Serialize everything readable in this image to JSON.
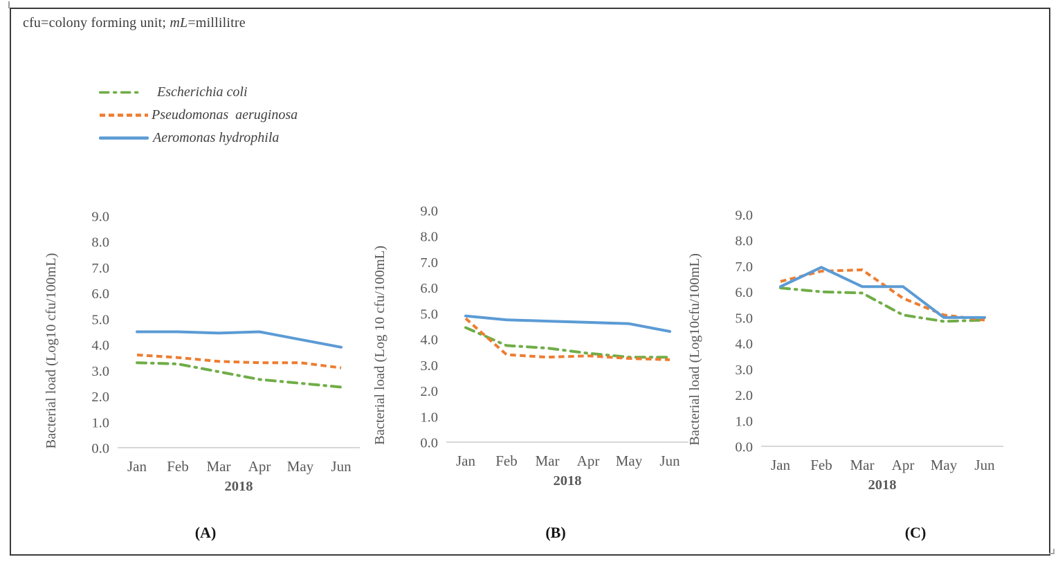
{
  "note": {
    "prefix": "cfu=colony forming unit; ",
    "emphasis": "mL",
    "suffix": "=millilitre"
  },
  "legend": {
    "items": [
      {
        "label": "Escherichia coli",
        "color": "#70AD47",
        "line_style": "dash-dot"
      },
      {
        "label": "Pseudomonas  aeruginosa",
        "color": "#ED7D31",
        "line_style": "dashed"
      },
      {
        "label": "Aeromonas hydrophila",
        "color": "#5B9BD5",
        "line_style": "solid"
      }
    ]
  },
  "colors": {
    "ecoli_green": "#70AD47",
    "pseudomonas_orange": "#ED7D31",
    "aeromonas_blue": "#5B9BD5",
    "axis_gray": "#BFBFBF",
    "tick_text_gray": "#595959"
  },
  "chart_data": [
    {
      "type": "line",
      "panel_label": "(A)",
      "categories": [
        "Jan",
        "Feb",
        "Mar",
        "Apr",
        "May",
        "Jun"
      ],
      "x_group_label": "2018",
      "ylabel": "Bacterial load (Log10 cfu/100mL)",
      "ylim": [
        0,
        9
      ],
      "ytick_labels": [
        "9.0",
        "8.0",
        "7.0",
        "6.0",
        "5.0",
        "4.0",
        "3.0",
        "2.0",
        "1.0",
        "0.0"
      ],
      "grid": false,
      "legend_position": "none",
      "series": [
        {
          "name": "Escherichia coli",
          "color": "#70AD47",
          "style": "dash-dot",
          "values": [
            3.3,
            3.25,
            2.95,
            2.65,
            2.5,
            2.35
          ]
        },
        {
          "name": "Pseudomonas aeruginosa",
          "color": "#ED7D31",
          "style": "dashed",
          "values": [
            3.6,
            3.5,
            3.35,
            3.3,
            3.3,
            3.1
          ]
        },
        {
          "name": "Aeromonas hydrophila",
          "color": "#5B9BD5",
          "style": "solid",
          "values": [
            4.5,
            4.5,
            4.45,
            4.5,
            4.2,
            3.9
          ]
        }
      ]
    },
    {
      "type": "line",
      "panel_label": "(B)",
      "categories": [
        "Jan",
        "Feb",
        "Mar",
        "Apr",
        "May",
        "Jun"
      ],
      "x_group_label": "2018",
      "ylabel": "Bacterial load (Log 10 cfu/100mL)",
      "ylim": [
        0,
        9
      ],
      "ytick_labels": [
        "9.0",
        "8.0",
        "7.0",
        "6.0",
        "5.0",
        "4.0",
        "3.0",
        "2.0",
        "1.0",
        "0.0"
      ],
      "grid": false,
      "legend_position": "none",
      "series": [
        {
          "name": "Escherichia coli",
          "color": "#70AD47",
          "style": "dash-dot",
          "values": [
            4.45,
            3.75,
            3.65,
            3.45,
            3.3,
            3.3
          ]
        },
        {
          "name": "Pseudomonas aeruginosa",
          "color": "#ED7D31",
          "style": "dashed",
          "values": [
            4.8,
            3.4,
            3.3,
            3.35,
            3.25,
            3.2
          ]
        },
        {
          "name": "Aeromonas hydrophila",
          "color": "#5B9BD5",
          "style": "solid",
          "values": [
            4.9,
            4.75,
            4.7,
            4.65,
            4.6,
            4.3
          ]
        }
      ]
    },
    {
      "type": "line",
      "panel_label": "(C)",
      "categories": [
        "Jan",
        "Feb",
        "Mar",
        "Apr",
        "May",
        "Jun"
      ],
      "x_group_label": "2018",
      "ylabel": "Bacterial load (Log10cfu/100mL)",
      "ylim": [
        0,
        9
      ],
      "ytick_labels": [
        "9.0",
        "8.0",
        "7.0",
        "6.0",
        "5.0",
        "4.0",
        "3.0",
        "2.0",
        "1.0",
        "0.0"
      ],
      "grid": false,
      "legend_position": "none",
      "series": [
        {
          "name": "Escherichia coli",
          "color": "#70AD47",
          "style": "dash-dot",
          "values": [
            6.15,
            6.0,
            5.95,
            5.1,
            4.85,
            4.9
          ]
        },
        {
          "name": "Pseudomonas aeruginosa",
          "color": "#ED7D31",
          "style": "dashed",
          "values": [
            6.4,
            6.8,
            6.85,
            5.75,
            5.1,
            4.9
          ]
        },
        {
          "name": "Aeromonas hydrophila",
          "color": "#5B9BD5",
          "style": "solid",
          "values": [
            6.2,
            6.95,
            6.2,
            6.2,
            5.0,
            5.0
          ]
        }
      ]
    }
  ]
}
